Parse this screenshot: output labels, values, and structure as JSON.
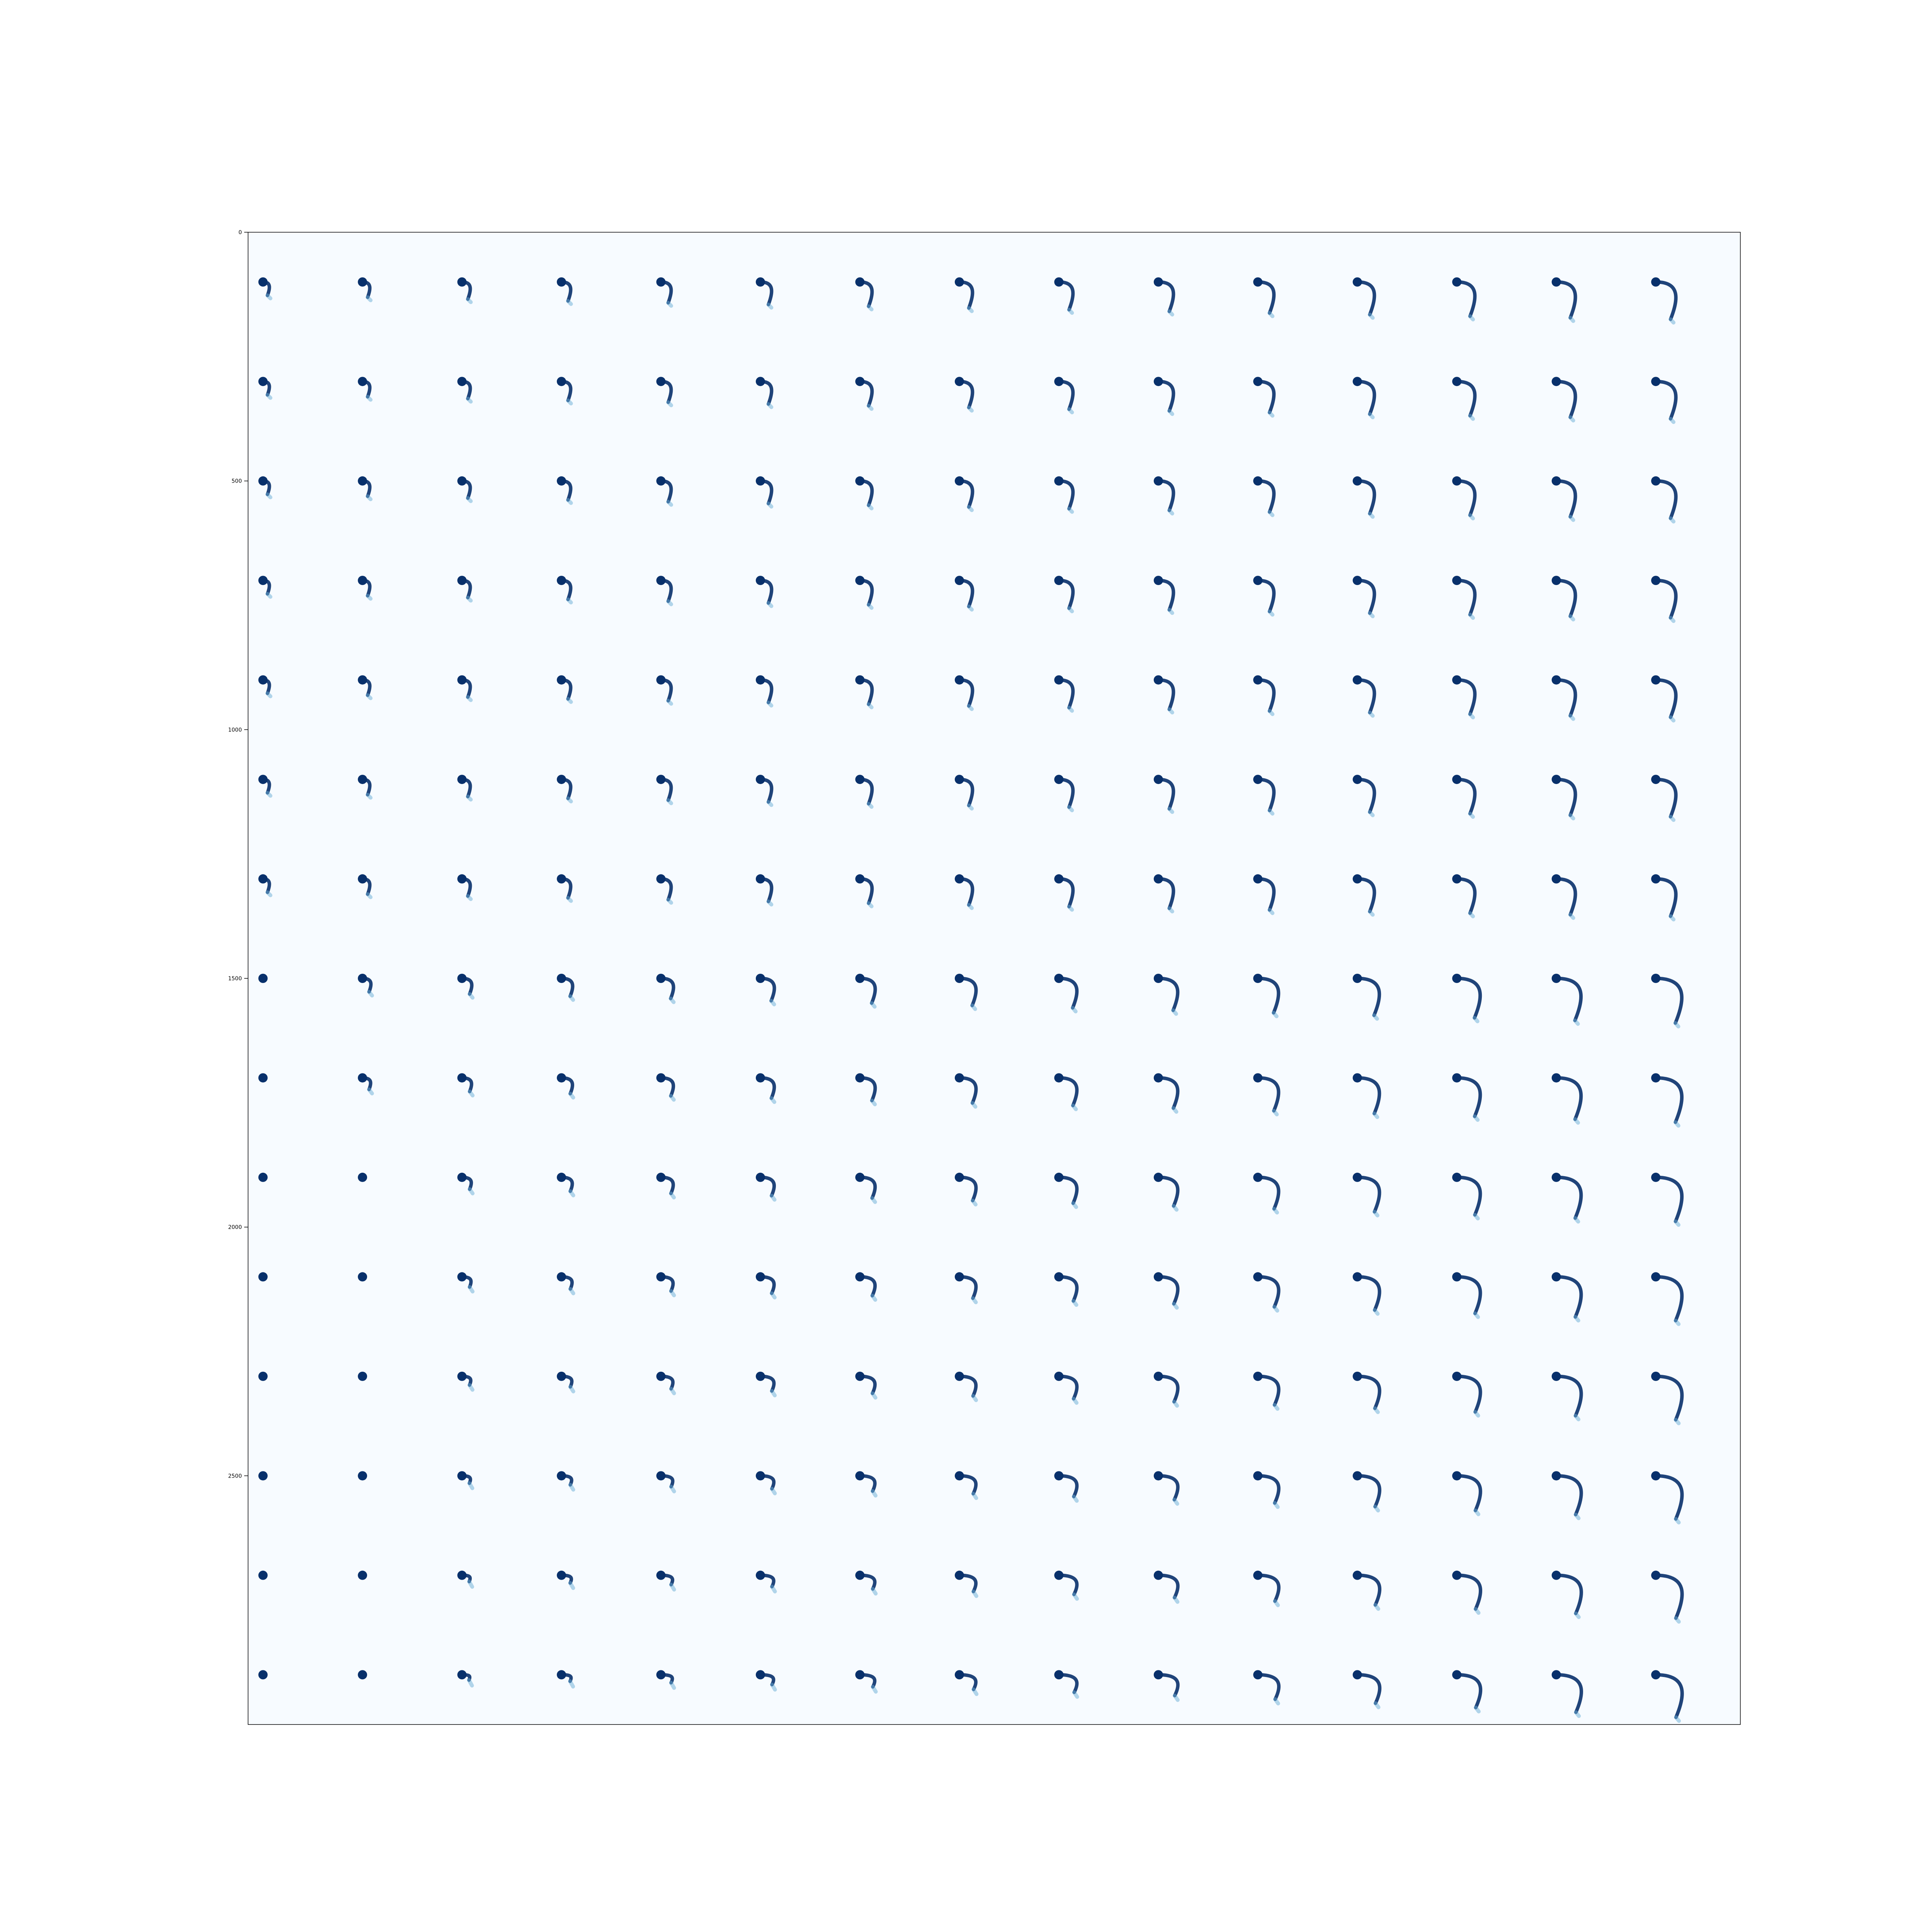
{
  "chart_data": {
    "type": "heatmap",
    "colormap": "Blues",
    "colors": {
      "background": "#f7fbff",
      "dense": "#08306b",
      "medium": "#2171b5",
      "light": "#6baed6",
      "faint": "#c6dbef",
      "axis": "#000000"
    },
    "xlim": [
      0,
      3000
    ],
    "ylim": [
      3000,
      0
    ],
    "y_ticks": [
      0,
      500,
      1000,
      1500,
      2000,
      2500
    ],
    "y_tick_labels": [
      "0",
      "500",
      "1000",
      "1500",
      "2000",
      "2500"
    ],
    "x_ticks": [],
    "grid": false,
    "legend": "none",
    "grid_layout": {
      "rows": 15,
      "cols": 15,
      "cell_size": 200
    },
    "description_of_marks": "each cell shows a dark dot with a curved stroke; stroke angle sweeps across rows and columns",
    "title": "",
    "xlabel": "",
    "ylabel": ""
  }
}
